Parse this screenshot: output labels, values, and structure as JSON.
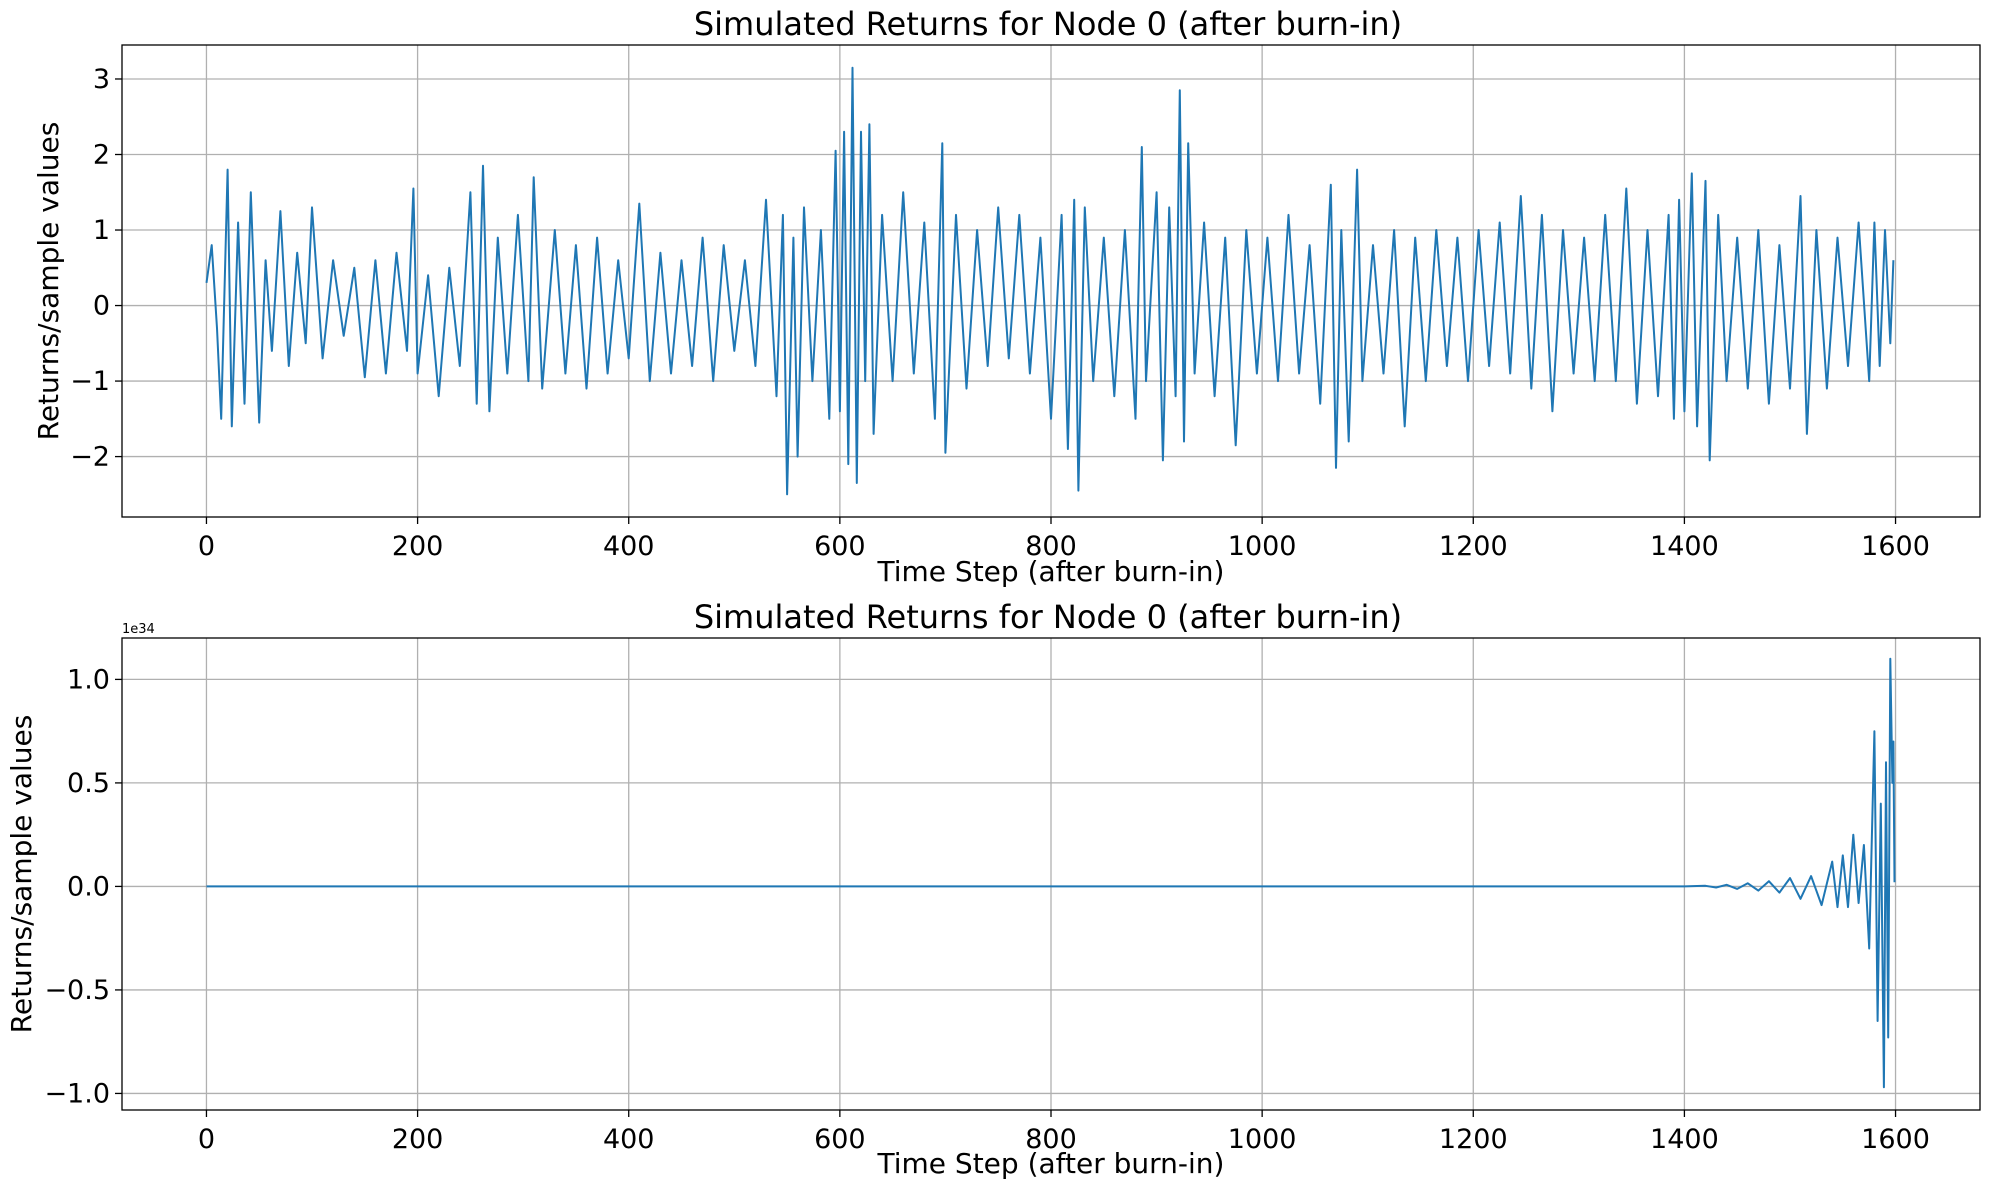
{
  "chart_data": [
    {
      "type": "line",
      "title": "Simulated Returns for Node 0 (after burn-in)",
      "xlabel": "Time Step (after burn-in)",
      "ylabel": "Returns/sample values",
      "y_offset_label": "",
      "xlim": [
        -80,
        1680
      ],
      "ylim": [
        -2.8,
        3.45
      ],
      "xticks": [
        0,
        200,
        400,
        600,
        800,
        1000,
        1200,
        1400,
        1600
      ],
      "xtick_labels": [
        "0",
        "200",
        "400",
        "600",
        "800",
        "1000",
        "1200",
        "1400",
        "1600"
      ],
      "yticks": [
        -2,
        -1,
        0,
        1,
        2,
        3
      ],
      "ytick_labels": [
        "−2",
        "−1",
        "0",
        "1",
        "2",
        "3"
      ],
      "grid": true,
      "legend": "none",
      "series_color": "#1f77b4",
      "series": [
        {
          "points": [
            [
              0,
              0.3
            ],
            [
              5,
              0.8
            ],
            [
              10,
              -0.3
            ],
            [
              14,
              -1.5
            ],
            [
              20,
              1.8
            ],
            [
              24,
              -1.6
            ],
            [
              30,
              1.1
            ],
            [
              36,
              -1.3
            ],
            [
              42,
              1.5
            ],
            [
              50,
              -1.55
            ],
            [
              56,
              0.6
            ],
            [
              62,
              -0.6
            ],
            [
              70,
              1.25
            ],
            [
              78,
              -0.8
            ],
            [
              86,
              0.7
            ],
            [
              94,
              -0.5
            ],
            [
              100,
              1.3
            ],
            [
              110,
              -0.7
            ],
            [
              120,
              0.6
            ],
            [
              130,
              -0.4
            ],
            [
              140,
              0.5
            ],
            [
              150,
              -0.95
            ],
            [
              160,
              0.6
            ],
            [
              170,
              -0.9
            ],
            [
              180,
              0.7
            ],
            [
              190,
              -0.6
            ],
            [
              196,
              1.55
            ],
            [
              200,
              -0.9
            ],
            [
              210,
              0.4
            ],
            [
              220,
              -1.2
            ],
            [
              230,
              0.5
            ],
            [
              240,
              -0.8
            ],
            [
              250,
              1.5
            ],
            [
              256,
              -1.3
            ],
            [
              262,
              1.85
            ],
            [
              268,
              -1.4
            ],
            [
              276,
              0.9
            ],
            [
              285,
              -0.9
            ],
            [
              295,
              1.2
            ],
            [
              305,
              -1.0
            ],
            [
              310,
              1.7
            ],
            [
              318,
              -1.1
            ],
            [
              330,
              1.0
            ],
            [
              340,
              -0.9
            ],
            [
              350,
              0.8
            ],
            [
              360,
              -1.1
            ],
            [
              370,
              0.9
            ],
            [
              380,
              -0.9
            ],
            [
              390,
              0.6
            ],
            [
              400,
              -0.7
            ],
            [
              410,
              1.35
            ],
            [
              420,
              -1.0
            ],
            [
              430,
              0.7
            ],
            [
              440,
              -0.9
            ],
            [
              450,
              0.6
            ],
            [
              460,
              -0.8
            ],
            [
              470,
              0.9
            ],
            [
              480,
              -1.0
            ],
            [
              490,
              0.8
            ],
            [
              500,
              -0.6
            ],
            [
              510,
              0.6
            ],
            [
              520,
              -0.8
            ],
            [
              530,
              1.4
            ],
            [
              540,
              -1.2
            ],
            [
              546,
              1.2
            ],
            [
              550,
              -2.5
            ],
            [
              556,
              0.9
            ],
            [
              560,
              -2.0
            ],
            [
              566,
              1.3
            ],
            [
              574,
              -1.0
            ],
            [
              582,
              1.0
            ],
            [
              590,
              -1.5
            ],
            [
              596,
              2.05
            ],
            [
              600,
              -1.4
            ],
            [
              604,
              2.3
            ],
            [
              608,
              -2.1
            ],
            [
              612,
              3.15
            ],
            [
              616,
              -2.35
            ],
            [
              620,
              2.3
            ],
            [
              624,
              -1.0
            ],
            [
              628,
              2.4
            ],
            [
              632,
              -1.7
            ],
            [
              640,
              1.2
            ],
            [
              650,
              -1.0
            ],
            [
              660,
              1.5
            ],
            [
              670,
              -0.9
            ],
            [
              680,
              1.1
            ],
            [
              690,
              -1.5
            ],
            [
              697,
              2.15
            ],
            [
              700,
              -1.95
            ],
            [
              710,
              1.2
            ],
            [
              720,
              -1.1
            ],
            [
              730,
              1.0
            ],
            [
              740,
              -0.8
            ],
            [
              750,
              1.3
            ],
            [
              760,
              -0.7
            ],
            [
              770,
              1.2
            ],
            [
              780,
              -0.9
            ],
            [
              790,
              0.9
            ],
            [
              800,
              -1.5
            ],
            [
              810,
              1.2
            ],
            [
              816,
              -1.9
            ],
            [
              822,
              1.4
            ],
            [
              826,
              -2.45
            ],
            [
              832,
              1.3
            ],
            [
              840,
              -1.0
            ],
            [
              850,
              0.9
            ],
            [
              860,
              -1.2
            ],
            [
              870,
              1.0
            ],
            [
              880,
              -1.5
            ],
            [
              886,
              2.1
            ],
            [
              890,
              -1.0
            ],
            [
              900,
              1.5
            ],
            [
              906,
              -2.05
            ],
            [
              912,
              1.3
            ],
            [
              918,
              -1.2
            ],
            [
              922,
              2.85
            ],
            [
              926,
              -1.8
            ],
            [
              930,
              2.15
            ],
            [
              936,
              -0.9
            ],
            [
              945,
              1.1
            ],
            [
              955,
              -1.2
            ],
            [
              965,
              0.9
            ],
            [
              975,
              -1.85
            ],
            [
              985,
              1.0
            ],
            [
              995,
              -0.9
            ],
            [
              1005,
              0.9
            ],
            [
              1015,
              -1.0
            ],
            [
              1025,
              1.2
            ],
            [
              1035,
              -0.9
            ],
            [
              1045,
              0.8
            ],
            [
              1055,
              -1.3
            ],
            [
              1065,
              1.6
            ],
            [
              1070,
              -2.15
            ],
            [
              1075,
              1.0
            ],
            [
              1082,
              -1.8
            ],
            [
              1090,
              1.8
            ],
            [
              1095,
              -1.0
            ],
            [
              1105,
              0.8
            ],
            [
              1115,
              -0.9
            ],
            [
              1125,
              1.0
            ],
            [
              1135,
              -1.6
            ],
            [
              1145,
              0.9
            ],
            [
              1155,
              -1.0
            ],
            [
              1165,
              1.0
            ],
            [
              1175,
              -0.8
            ],
            [
              1185,
              0.9
            ],
            [
              1195,
              -1.0
            ],
            [
              1205,
              1.0
            ],
            [
              1215,
              -0.8
            ],
            [
              1225,
              1.1
            ],
            [
              1235,
              -0.9
            ],
            [
              1245,
              1.45
            ],
            [
              1255,
              -1.1
            ],
            [
              1265,
              1.2
            ],
            [
              1275,
              -1.4
            ],
            [
              1285,
              1.0
            ],
            [
              1295,
              -0.9
            ],
            [
              1305,
              0.9
            ],
            [
              1315,
              -1.0
            ],
            [
              1325,
              1.2
            ],
            [
              1335,
              -1.0
            ],
            [
              1345,
              1.55
            ],
            [
              1355,
              -1.3
            ],
            [
              1365,
              1.0
            ],
            [
              1375,
              -1.2
            ],
            [
              1385,
              1.2
            ],
            [
              1390,
              -1.5
            ],
            [
              1395,
              1.4
            ],
            [
              1400,
              -1.4
            ],
            [
              1407,
              1.75
            ],
            [
              1412,
              -1.6
            ],
            [
              1420,
              1.65
            ],
            [
              1424,
              -2.05
            ],
            [
              1432,
              1.2
            ],
            [
              1440,
              -1.0
            ],
            [
              1450,
              0.9
            ],
            [
              1460,
              -1.1
            ],
            [
              1470,
              1.0
            ],
            [
              1480,
              -1.3
            ],
            [
              1490,
              0.8
            ],
            [
              1500,
              -1.1
            ],
            [
              1510,
              1.45
            ],
            [
              1516,
              -1.7
            ],
            [
              1525,
              1.0
            ],
            [
              1535,
              -1.1
            ],
            [
              1545,
              0.9
            ],
            [
              1555,
              -0.8
            ],
            [
              1565,
              1.1
            ],
            [
              1575,
              -1.0
            ],
            [
              1580,
              1.1
            ],
            [
              1585,
              -0.8
            ],
            [
              1590,
              1.0
            ],
            [
              1595,
              -0.5
            ],
            [
              1598,
              0.6
            ]
          ]
        }
      ]
    },
    {
      "type": "line",
      "title": "Simulated Returns for Node 0 (after burn-in)",
      "xlabel": "Time Step (after burn-in)",
      "ylabel": "Returns/sample values",
      "y_offset_label": "1e34",
      "xlim": [
        -80,
        1680
      ],
      "ylim": [
        -1.08,
        1.2
      ],
      "xticks": [
        0,
        200,
        400,
        600,
        800,
        1000,
        1200,
        1400,
        1600
      ],
      "xtick_labels": [
        "0",
        "200",
        "400",
        "600",
        "800",
        "1000",
        "1200",
        "1400",
        "1600"
      ],
      "yticks": [
        -1.0,
        -0.5,
        0.0,
        0.5,
        1.0
      ],
      "ytick_labels": [
        "−1.0",
        "−0.5",
        "0.0",
        "0.5",
        "1.0"
      ],
      "grid": true,
      "legend": "none",
      "series_color": "#1f77b4",
      "series": [
        {
          "points": [
            [
              0,
              0
            ],
            [
              1400,
              0
            ],
            [
              1420,
              0.003
            ],
            [
              1430,
              -0.005
            ],
            [
              1440,
              0.008
            ],
            [
              1450,
              -0.012
            ],
            [
              1460,
              0.015
            ],
            [
              1470,
              -0.02
            ],
            [
              1480,
              0.025
            ],
            [
              1490,
              -0.03
            ],
            [
              1500,
              0.04
            ],
            [
              1510,
              -0.06
            ],
            [
              1520,
              0.05
            ],
            [
              1530,
              -0.09
            ],
            [
              1540,
              0.12
            ],
            [
              1545,
              -0.1
            ],
            [
              1550,
              0.15
            ],
            [
              1555,
              -0.1
            ],
            [
              1560,
              0.25
            ],
            [
              1565,
              -0.08
            ],
            [
              1570,
              0.2
            ],
            [
              1575,
              -0.3
            ],
            [
              1580,
              0.75
            ],
            [
              1583,
              -0.65
            ],
            [
              1586,
              0.4
            ],
            [
              1589,
              -0.97
            ],
            [
              1591,
              0.6
            ],
            [
              1593,
              -0.73
            ],
            [
              1595,
              1.1
            ],
            [
              1597,
              0.5
            ],
            [
              1598,
              0.7
            ],
            [
              1599,
              0.02
            ]
          ]
        }
      ]
    }
  ]
}
